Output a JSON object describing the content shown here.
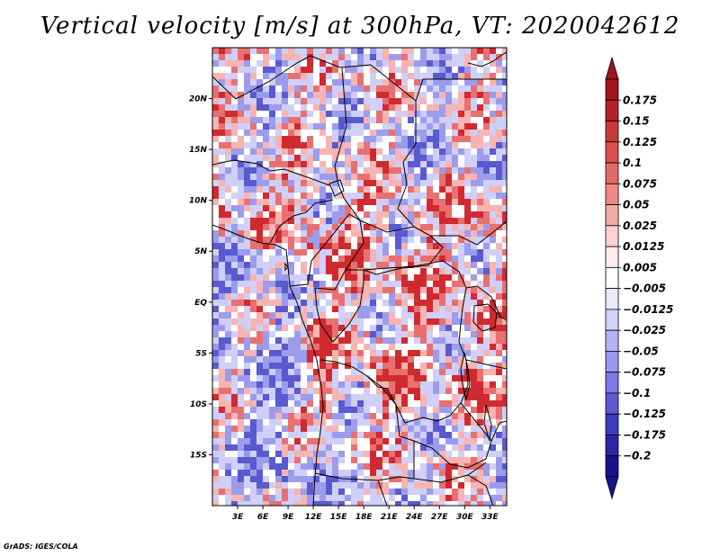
{
  "title": "Vertical velocity [m/s] at 300hPa, VT: 2020042612",
  "credit": "GrADS: IGES/COLA",
  "chart_data": {
    "type": "heatmap",
    "title": "Vertical velocity [m/s] at 300hPa, VT: 2020042612",
    "variable": "Vertical velocity",
    "units": "m/s",
    "level": "300hPa",
    "valid_time": "2020042612",
    "lon_range": [
      0,
      35
    ],
    "lat_range": [
      -20,
      25
    ],
    "x_ticks": [
      {
        "value": 3,
        "label": "3E"
      },
      {
        "value": 6,
        "label": "6E"
      },
      {
        "value": 9,
        "label": "9E"
      },
      {
        "value": 12,
        "label": "12E"
      },
      {
        "value": 15,
        "label": "15E"
      },
      {
        "value": 18,
        "label": "18E"
      },
      {
        "value": 21,
        "label": "21E"
      },
      {
        "value": 24,
        "label": "24E"
      },
      {
        "value": 27,
        "label": "27E"
      },
      {
        "value": 30,
        "label": "30E"
      },
      {
        "value": 33,
        "label": "33E"
      }
    ],
    "y_ticks": [
      {
        "value": 20,
        "label": "20N"
      },
      {
        "value": 15,
        "label": "15N"
      },
      {
        "value": 10,
        "label": "10N"
      },
      {
        "value": 5,
        "label": "5N"
      },
      {
        "value": 0,
        "label": "EQ"
      },
      {
        "value": -5,
        "label": "5S"
      },
      {
        "value": -10,
        "label": "10S"
      },
      {
        "value": -15,
        "label": "15S"
      }
    ],
    "colorbar": {
      "labels": [
        "0.175",
        "0.15",
        "0.125",
        "0.1",
        "0.075",
        "0.05",
        "0.025",
        "0.0125",
        "0.005",
        "-0.005",
        "-0.0125",
        "-0.025",
        "-0.05",
        "-0.075",
        "-0.1",
        "-0.125",
        "-0.175",
        "-0.2"
      ],
      "colors": [
        "#a0141e",
        "#b42128",
        "#c8393a",
        "#d94f4d",
        "#e46a66",
        "#ef8a86",
        "#f6aaa6",
        "#fbd2d0",
        "#fdeceb",
        "#ffffff",
        "#eaeaff",
        "#d2d2fc",
        "#b4b4f6",
        "#9898ee",
        "#7a7ae2",
        "#5c5cd2",
        "#3c3cbc",
        "#2828a6",
        "#14148c"
      ],
      "top_arrow_color": "#a0141e",
      "bottom_arrow_color": "#14148c"
    },
    "field_colors": {
      "strong_up": "#d02a30",
      "moderate_up": "#e87070",
      "weak_up": "#f6b4b2",
      "neutral": "#ffffff",
      "weak_down": "#cfcff8",
      "moderate_down": "#9c9cec",
      "strong_down": "#5a5ad0"
    }
  }
}
